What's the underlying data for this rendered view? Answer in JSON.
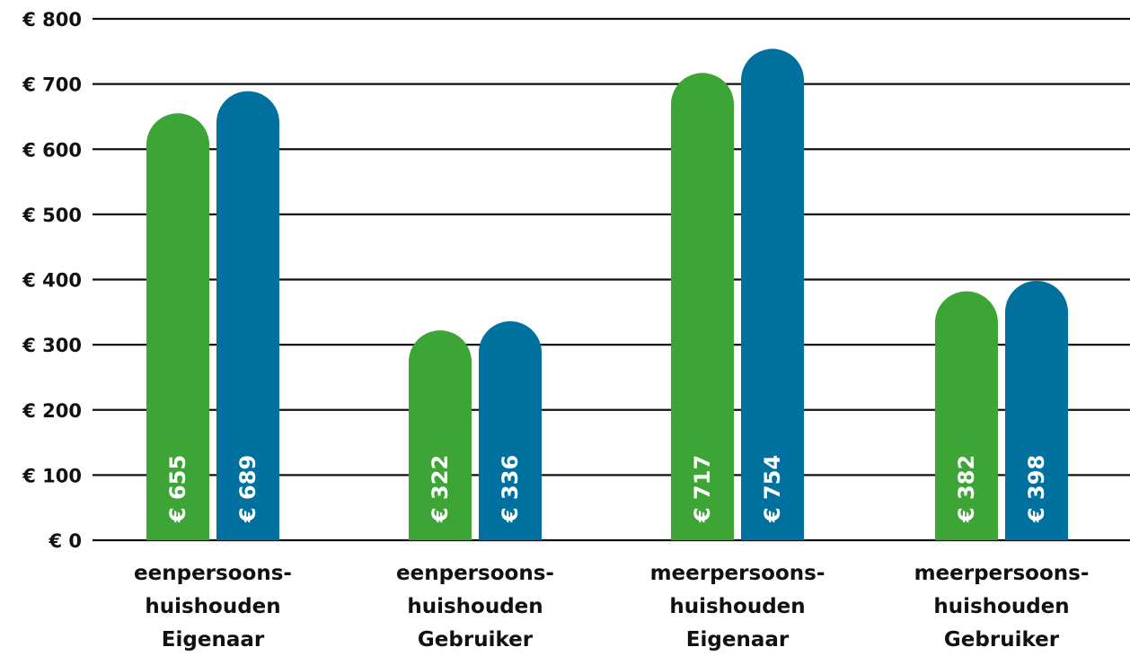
{
  "chart_data": {
    "type": "bar",
    "categories": [
      [
        "eenpersoons-",
        "huishouden",
        "Eigenaar"
      ],
      [
        "eenpersoons-",
        "huishouden",
        "Gebruiker"
      ],
      [
        "meerpersoons-",
        "huishouden",
        "Eigenaar"
      ],
      [
        "meerpersoons-",
        "huishouden",
        "Gebruiker"
      ]
    ],
    "series": [
      {
        "values": [
          655,
          322,
          717,
          382
        ],
        "labels": [
          "€ 655",
          "€ 322",
          "€ 717",
          "€ 382"
        ],
        "color": "#3ca535"
      },
      {
        "values": [
          689,
          336,
          754,
          398
        ],
        "labels": [
          "€ 689",
          "€ 336",
          "€ 754",
          "€ 398"
        ],
        "color": "#00709f"
      }
    ],
    "ylim": [
      0,
      800
    ],
    "yticks": [
      0,
      100,
      200,
      300,
      400,
      500,
      600,
      700,
      800
    ],
    "ytick_labels": [
      "€ 0",
      "€ 100",
      "€ 200",
      "€ 300",
      "€ 400",
      "€ 500",
      "€ 600",
      "€ 700",
      "€ 800"
    ],
    "grid": true,
    "legend": "none",
    "title": "",
    "xlabel": "",
    "ylabel": ""
  }
}
